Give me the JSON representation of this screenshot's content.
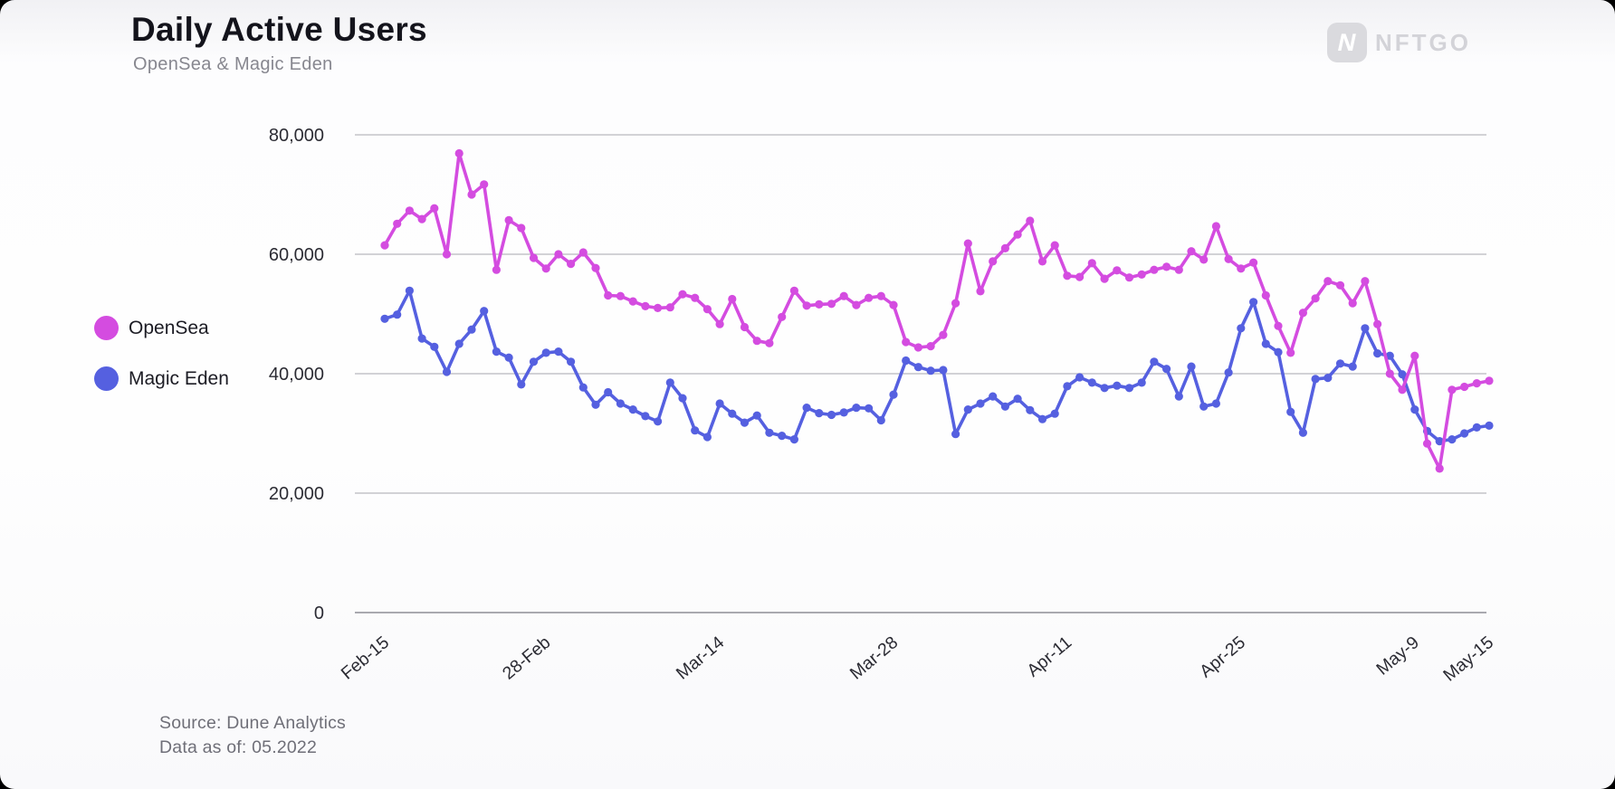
{
  "header": {
    "title": "Daily Active Users",
    "subtitle": "OpenSea & Magic Eden",
    "logo": {
      "text": "NFTGO",
      "mark": "N"
    }
  },
  "legend": {
    "items": [
      {
        "label": "OpenSea",
        "color": "#d44ce0"
      },
      {
        "label": "Magic Eden",
        "color": "#5560e0"
      }
    ]
  },
  "footer": {
    "source_line": "Source: Dune Analytics",
    "asof_line": "Data as of: 05.2022"
  },
  "chart_data": {
    "type": "line",
    "title": "Daily Active Users",
    "subtitle": "OpenSea & Magic Eden",
    "x_frequency": "daily",
    "x_start": "Feb-15",
    "x_end": "May-15",
    "n_points": 90,
    "grid": "horizontal",
    "ylim": [
      0,
      80000
    ],
    "yticks": [
      0,
      20000,
      40000,
      60000,
      80000
    ],
    "xticks": [
      {
        "label": "Feb-15",
        "index": 0
      },
      {
        "label": "28-Feb",
        "index": 13
      },
      {
        "label": "Mar-14",
        "index": 27
      },
      {
        "label": "Mar-28",
        "index": 41
      },
      {
        "label": "Apr-11",
        "index": 55
      },
      {
        "label": "Apr-25",
        "index": 69
      },
      {
        "label": "May-9",
        "index": 83
      },
      {
        "label": "May-15",
        "index": 89
      }
    ],
    "series": [
      {
        "name": "OpenSea",
        "color": "#d44ce0",
        "values": [
          61500,
          65100,
          67300,
          65900,
          67700,
          60000,
          76900,
          70000,
          71700,
          57400,
          65700,
          64400,
          59400,
          57600,
          60000,
          58400,
          60300,
          57700,
          53100,
          53000,
          52100,
          51300,
          51000,
          51100,
          53300,
          52700,
          50800,
          48300,
          52500,
          47800,
          45500,
          45100,
          49500,
          53900,
          51400,
          51600,
          51700,
          53000,
          51500,
          52700,
          53000,
          51500,
          45300,
          44400,
          44600,
          46500,
          51800,
          61800,
          53800,
          58800,
          61000,
          63300,
          65600,
          58800,
          61500,
          56400,
          56200,
          58500,
          55900,
          57300,
          56100,
          56600,
          57400,
          57900,
          57400,
          60500,
          59100,
          64700,
          59200,
          57600,
          58600,
          53100,
          48000,
          43500,
          50200,
          52600,
          55500,
          54800,
          51800,
          55500,
          48300,
          40000,
          37300,
          43000,
          28300,
          24100,
          37300,
          37800,
          38400,
          38800
        ]
      },
      {
        "name": "Magic Eden",
        "color": "#5560e0",
        "values": [
          49200,
          49900,
          53900,
          45900,
          44500,
          40300,
          45000,
          47400,
          50500,
          43700,
          42700,
          38200,
          42000,
          43500,
          43700,
          42000,
          37700,
          34800,
          36900,
          35000,
          34000,
          32900,
          32000,
          38500,
          35900,
          30500,
          29400,
          35000,
          33300,
          31800,
          33000,
          30100,
          29600,
          29000,
          34300,
          33400,
          33100,
          33500,
          34300,
          34200,
          32200,
          36500,
          42200,
          41100,
          40500,
          40600,
          29900,
          34000,
          35000,
          36200,
          34500,
          35800,
          33900,
          32400,
          33300,
          37900,
          39400,
          38500,
          37600,
          38000,
          37600,
          38500,
          42000,
          40800,
          36200,
          41200,
          34500,
          35000,
          40200,
          47600,
          52000,
          45000,
          43600,
          33600,
          30100,
          39100,
          39300,
          41700,
          41200,
          47600,
          43400,
          43000,
          39900,
          34000,
          30400,
          28700,
          29000,
          30000,
          31000,
          31300
        ]
      }
    ]
  }
}
